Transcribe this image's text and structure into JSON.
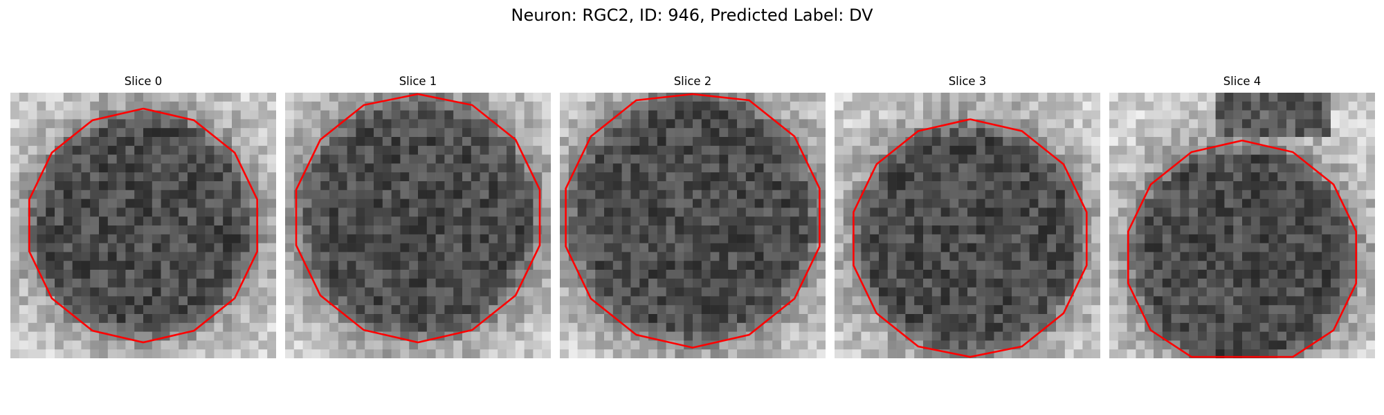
{
  "figure": {
    "title": "Neuron: RGC2, ID: 946, Predicted Label: DV",
    "contour_color": "#ff0000"
  },
  "slices": [
    {
      "label": "Slice 0"
    },
    {
      "label": "Slice 1"
    },
    {
      "label": "Slice 2"
    },
    {
      "label": "Slice 3"
    },
    {
      "label": "Slice 4"
    }
  ]
}
